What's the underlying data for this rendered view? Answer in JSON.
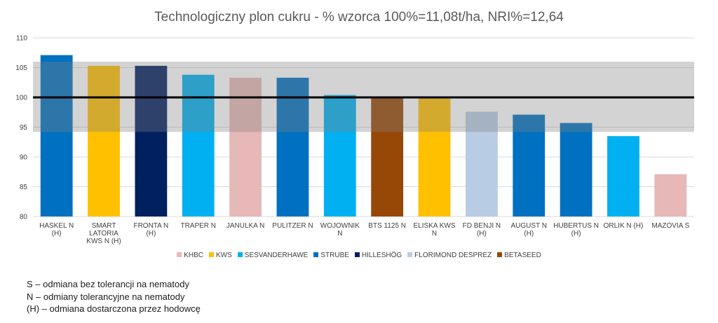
{
  "chart_data": {
    "type": "bar",
    "title": "Technologiczny plon cukru - % wzorca 100%=11,08t/ha, NRI%=12,64",
    "ylim": [
      80,
      110
    ],
    "yticks": [
      80,
      85,
      90,
      95,
      100,
      105,
      110
    ],
    "reference_line": 100,
    "shaded_band": [
      94.2,
      106
    ],
    "grid": true,
    "legend_position": "bottom",
    "categories": [
      [
        "HASKEL N",
        "(H)"
      ],
      [
        "SMART",
        "LATORIA",
        "KWS N (H)"
      ],
      [
        "FRONTA N",
        "(H)"
      ],
      [
        "TRAPER N"
      ],
      [
        "JANULKA N"
      ],
      [
        "PULITZER N"
      ],
      [
        "WOJOWNIK",
        "N"
      ],
      [
        "BTS 1125 N"
      ],
      [
        "ELISKA KWS",
        "N"
      ],
      [
        "FD BENJI N",
        "(H)"
      ],
      [
        "AUGUST N",
        "(H)"
      ],
      [
        "HUBERTUS N",
        "(H)"
      ],
      [
        "ORLIK N (H)"
      ],
      [
        "MAZOVIA S"
      ]
    ],
    "values": [
      107.1,
      105.3,
      105.3,
      103.8,
      103.3,
      103.3,
      100.4,
      100.1,
      99.9,
      97.6,
      97.1,
      95.7,
      93.5,
      87.1
    ],
    "bar_breeder": [
      "STRUBE",
      "KWS",
      "HILLESHÖG",
      "SESVANDERHAWE",
      "KHBC",
      "STRUBE",
      "SESVANDERHAWE",
      "BETASEED",
      "KWS",
      "FLORIMOND DESPREZ",
      "STRUBE",
      "STRUBE",
      "SESVANDERHAWE",
      "KHBC"
    ],
    "legend": [
      {
        "name": "KHBC",
        "color": "#E6B8B7"
      },
      {
        "name": "KWS",
        "color": "#FFC000"
      },
      {
        "name": "SESVANDERHAWE",
        "color": "#00B0F0"
      },
      {
        "name": "STRUBE",
        "color": "#0070C0"
      },
      {
        "name": "HILLESHÖG",
        "color": "#002060"
      },
      {
        "name": "FLORIMOND DESPREZ",
        "color": "#B8CCE4"
      },
      {
        "name": "BETASEED",
        "color": "#974706"
      }
    ]
  },
  "notes": [
    "S – odmiana bez tolerancji na nematody",
    "N – odmiany tolerancyjne na nematody",
    "(H) – odmiana dostarczona przez hodowcę"
  ]
}
